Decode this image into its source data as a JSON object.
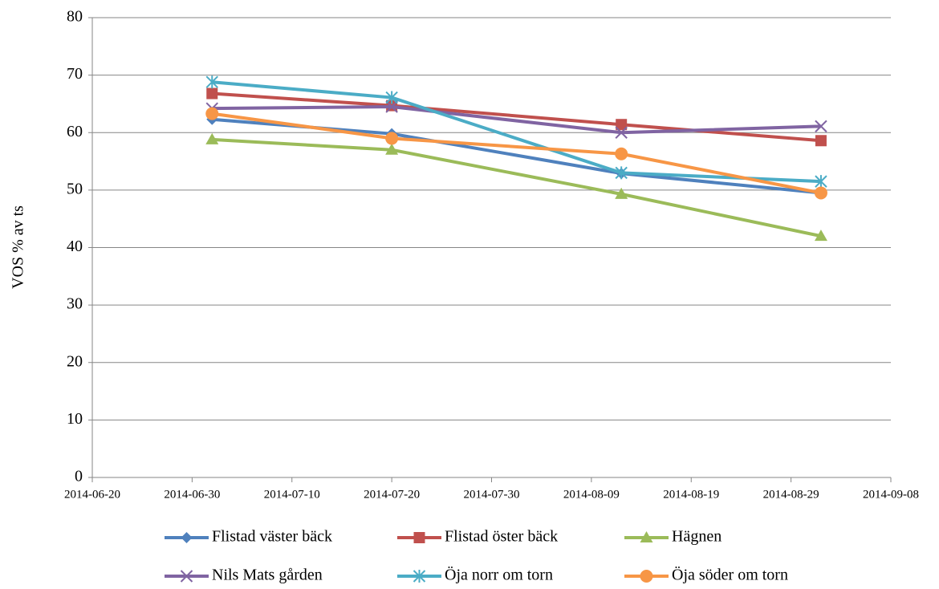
{
  "chart_data": {
    "type": "line",
    "y_label": "VOS % av ts",
    "x": [
      "2014-07-02",
      "2014-07-20",
      "2014-08-12",
      "2014-09-01"
    ],
    "xlim": [
      "2014-06-20",
      "2014-09-08"
    ],
    "xticks": [
      "2014-06-20",
      "2014-06-30",
      "2014-07-10",
      "2014-07-20",
      "2014-07-30",
      "2014-08-09",
      "2014-08-19",
      "2014-08-29",
      "2014-09-08"
    ],
    "ylim": [
      0,
      80
    ],
    "yticks": [
      0,
      10,
      20,
      30,
      40,
      50,
      60,
      70,
      80
    ],
    "grid": true,
    "legend": "bottom",
    "series": [
      {
        "name": "Flistad väster bäck",
        "color": "#4F81BD",
        "marker": "diamond",
        "values": [
          62.3,
          59.8,
          52.9,
          49.5
        ]
      },
      {
        "name": "Flistad öster bäck",
        "color": "#C0504D",
        "marker": "square",
        "values": [
          66.8,
          64.7,
          61.4,
          58.6
        ]
      },
      {
        "name": "Hägnen",
        "color": "#9BBB59",
        "marker": "triangle",
        "values": [
          58.8,
          57.0,
          49.3,
          42.0
        ]
      },
      {
        "name": "Nils Mats gården",
        "color": "#8064A2",
        "marker": "x",
        "values": [
          64.2,
          64.5,
          60.0,
          61.1
        ]
      },
      {
        "name": "Öja norr om torn",
        "color": "#4BACC6",
        "marker": "star",
        "values": [
          68.8,
          66.1,
          53.0,
          51.5
        ]
      },
      {
        "name": "Öja söder om torn",
        "color": "#F79646",
        "marker": "circle",
        "values": [
          63.3,
          59.0,
          56.3,
          49.5
        ]
      }
    ]
  }
}
